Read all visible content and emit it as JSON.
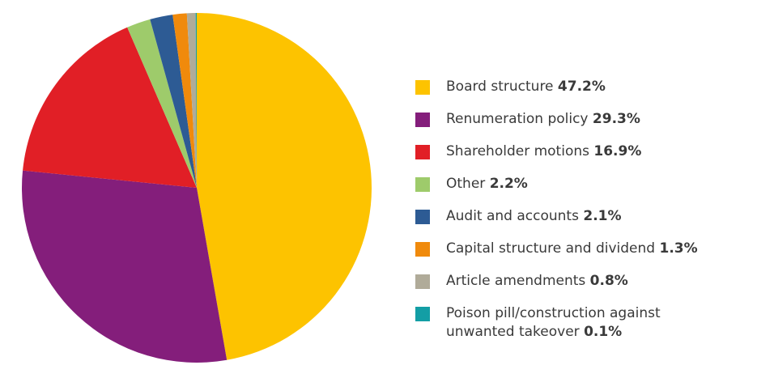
{
  "chart_data": {
    "type": "pie",
    "categories": [
      "Board structure",
      "Renumeration policy",
      "Shareholder motions",
      "Other",
      "Audit and accounts",
      "Capital structure and dividend",
      "Article amendments",
      "Poison pill/construction against unwanted takeover"
    ],
    "values": [
      47.2,
      29.3,
      16.9,
      2.2,
      2.1,
      1.3,
      0.8,
      0.1
    ],
    "value_labels": [
      "47.2%",
      "29.3%",
      "16.9%",
      "2.2%",
      "2.1%",
      "1.3%",
      "0.8%",
      "0.1%"
    ],
    "colors": [
      "#fdc300",
      "#841e7b",
      "#e11f26",
      "#9ecb6b",
      "#2d5b94",
      "#f08a0c",
      "#b0ab99",
      "#139ea5"
    ]
  }
}
